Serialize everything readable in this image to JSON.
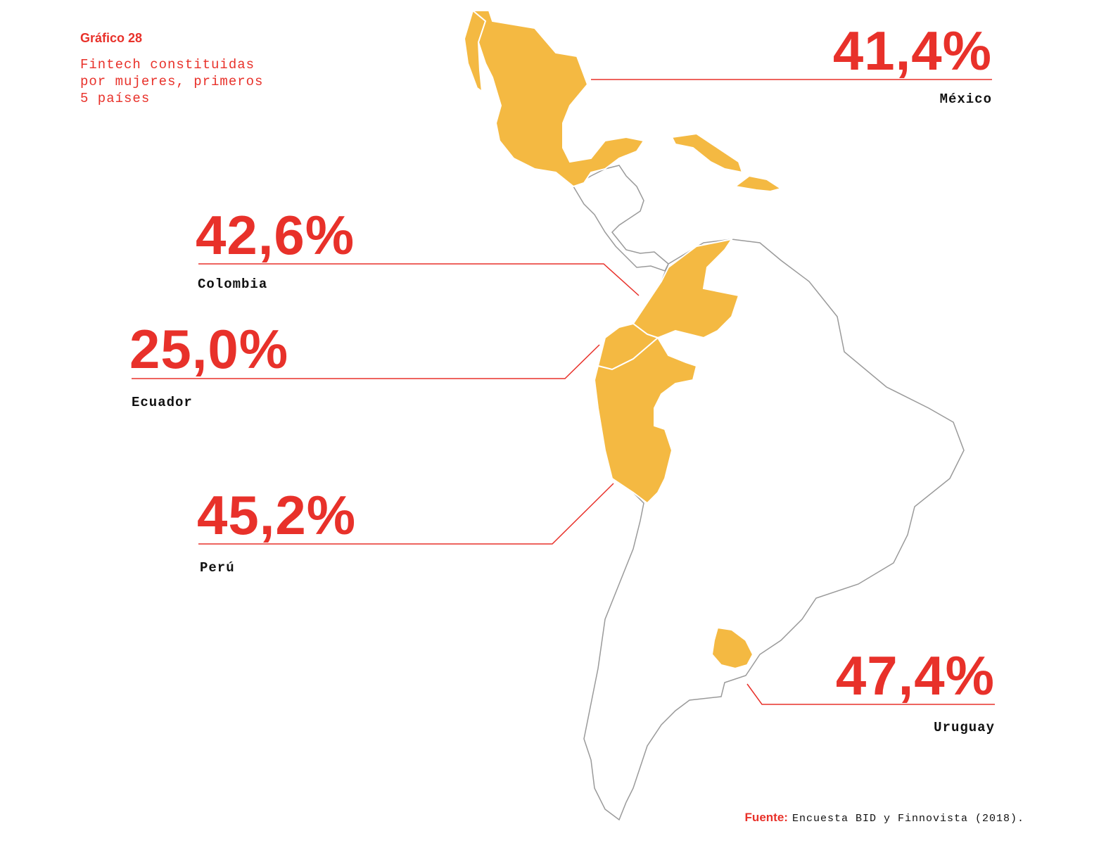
{
  "header": {
    "label": "Gráfico 28",
    "title": "Fintech constituidas por mujeres, primeros 5 países"
  },
  "countries": [
    {
      "name": "México",
      "value": "41,4%"
    },
    {
      "name": "Colombia",
      "value": "42,6%"
    },
    {
      "name": "Ecuador",
      "value": "25,0%"
    },
    {
      "name": "Perú",
      "value": "45,2%"
    },
    {
      "name": "Uruguay",
      "value": "47,4%"
    }
  ],
  "source": {
    "label": "Fuente:",
    "text": "Encuesta BID y Finnovista (2018)."
  }
}
